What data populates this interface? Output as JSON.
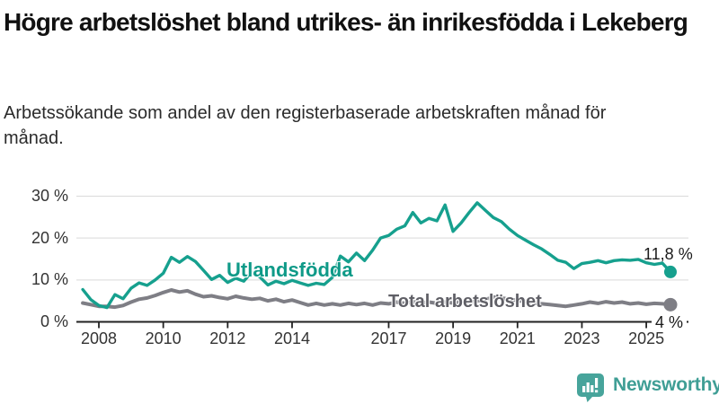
{
  "title": "Högre arbetslöshet bland utrikes- än inrikesfödda i Lekeberg",
  "subtitle": "Arbetssökande som andel av den registerbaserade arbetskraften månad för månad.",
  "chart_data": {
    "type": "line",
    "title": "Högre arbetslöshet bland utrikes- än inrikesfödda i Lekeberg",
    "xlabel": "",
    "ylabel": "",
    "ylim": [
      0,
      30
    ],
    "xlim": [
      2007.3,
      2026.1
    ],
    "grid": "horizontal",
    "legend_position": "inline-labels",
    "y_ticks": [
      {
        "v": 0,
        "label": "0 %"
      },
      {
        "v": 10,
        "label": "10 %"
      },
      {
        "v": 20,
        "label": "20 %"
      },
      {
        "v": 30,
        "label": "30 %"
      }
    ],
    "x_ticks": [
      {
        "v": 2008,
        "label": "2008"
      },
      {
        "v": 2010,
        "label": "2010"
      },
      {
        "v": 2012,
        "label": "2012"
      },
      {
        "v": 2014,
        "label": "2014"
      },
      {
        "v": 2017,
        "label": "2017"
      },
      {
        "v": 2019,
        "label": "2019"
      },
      {
        "v": 2021,
        "label": "2021"
      },
      {
        "v": 2023,
        "label": "2023"
      },
      {
        "v": 2025,
        "label": "2025"
      }
    ],
    "series": [
      {
        "name": "Utlandsfödda",
        "color": "#16a08e",
        "label_color": "#0f9a88",
        "end_label": "11,8 %",
        "end_value": 11.8,
        "start_year": 2007.5,
        "step_years": 0.25,
        "values": [
          7.6,
          5.2,
          3.8,
          3.3,
          6.4,
          5.4,
          7.9,
          9.2,
          8.6,
          9.9,
          11.5,
          15.3,
          14.1,
          15.5,
          14.3,
          12.2,
          10.0,
          11.0,
          9.3,
          10.3,
          9.6,
          11.8,
          10.6,
          8.7,
          9.6,
          9.0,
          9.8,
          9.2,
          8.6,
          9.1,
          8.8,
          10.5,
          15.6,
          14.2,
          16.3,
          14.5,
          17.0,
          19.9,
          20.5,
          22.0,
          22.8,
          26.0,
          23.5,
          24.6,
          24.0,
          27.8,
          21.5,
          23.5,
          26.0,
          28.3,
          26.5,
          24.8,
          23.8,
          22.0,
          20.5,
          19.4,
          18.3,
          17.3,
          16.0,
          14.6,
          14.1,
          12.6,
          13.8,
          14.1,
          14.5,
          14.0,
          14.5,
          14.7,
          14.6,
          14.8,
          14.0,
          13.6,
          13.9,
          11.8
        ]
      },
      {
        "name": "Total arbetslöshet",
        "color": "#7e7e85",
        "label_color": "#5f5f66",
        "end_label": "4 %",
        "end_value": 4,
        "start_year": 2007.5,
        "step_years": 0.25,
        "values": [
          4.4,
          4.0,
          3.6,
          3.6,
          3.4,
          3.8,
          4.6,
          5.3,
          5.6,
          6.2,
          6.9,
          7.5,
          7.0,
          7.3,
          6.5,
          5.9,
          6.1,
          5.7,
          5.4,
          6.0,
          5.6,
          5.3,
          5.5,
          4.9,
          5.3,
          4.7,
          5.1,
          4.5,
          3.9,
          4.3,
          3.9,
          4.2,
          3.9,
          4.3,
          4.0,
          4.3,
          3.9,
          4.4,
          4.2,
          4.6,
          4.3,
          4.7,
          4.4,
          4.6,
          4.3,
          4.6,
          4.4,
          4.7,
          4.5,
          4.9,
          5.2,
          5.8,
          5.6,
          5.3,
          5.0,
          4.7,
          4.4,
          4.2,
          4.0,
          3.8,
          3.6,
          3.9,
          4.2,
          4.6,
          4.3,
          4.7,
          4.4,
          4.6,
          4.2,
          4.4,
          4.1,
          4.3,
          4.2,
          4.0
        ]
      }
    ]
  },
  "colors": {
    "accent_teal": "#16a08e",
    "line_gray": "#7e7e85",
    "gridline": "#d9d9d9",
    "axis": "#222222",
    "logo_teal": "#3f9e95",
    "logo_icon_fill": "#47a49b"
  },
  "logo": {
    "text": "Newsworthy",
    "icon": "bar-chart-speech-bubble"
  }
}
